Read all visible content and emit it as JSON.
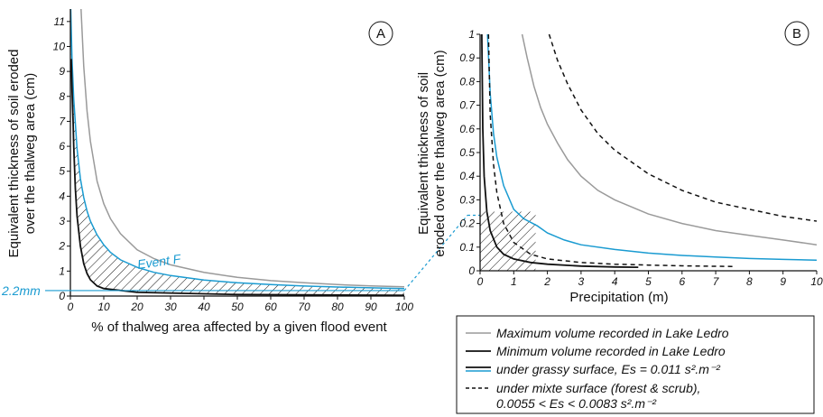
{
  "colors": {
    "gray": "#9a9a9a",
    "black": "#111111",
    "blue": "#1a9bd1"
  },
  "chart_data": [
    {
      "type": "line",
      "panel_label": "A",
      "xlabel": "% of thalweg area affected by a given flood event",
      "ylabel": [
        "Equivalent thickness of soil eroded",
        "over the thalweg area (cm)"
      ],
      "xlim": [
        0,
        100
      ],
      "ylim": [
        0,
        11.5
      ],
      "xticks": [
        "0",
        "10",
        "20",
        "30",
        "40",
        "50",
        "60",
        "70",
        "80",
        "90",
        "100"
      ],
      "yticks": [
        "0",
        "1",
        "2",
        "3",
        "4",
        "5",
        "6",
        "7",
        "8",
        "9",
        "10",
        "11"
      ],
      "series": [
        {
          "key": "max",
          "x": [
            3.2,
            4,
            5,
            6,
            7,
            8,
            10,
            12,
            15,
            20,
            25,
            30,
            40,
            50,
            60,
            70,
            80,
            90,
            100
          ],
          "y": [
            11.5,
            9.2,
            7.4,
            6.2,
            5.4,
            4.6,
            3.7,
            3.1,
            2.5,
            1.85,
            1.5,
            1.25,
            0.95,
            0.75,
            0.62,
            0.53,
            0.46,
            0.41,
            0.37
          ]
        },
        {
          "key": "min",
          "x": [
            0.25,
            0.5,
            0.8,
            1,
            1.5,
            2,
            3,
            4,
            5,
            6,
            8,
            10,
            20,
            50,
            100
          ],
          "y": [
            9.5,
            8.3,
            7,
            6,
            4.3,
            3.2,
            2,
            1.3,
            0.9,
            0.65,
            0.4,
            0.3,
            0.15,
            0.06,
            0.03
          ]
        },
        {
          "key": "event",
          "x": [
            0.1,
            0.5,
            1,
            2,
            3,
            4,
            5,
            6,
            8,
            10,
            12,
            15,
            20,
            25,
            30,
            40,
            50,
            60,
            70,
            80,
            90,
            100
          ],
          "y": [
            11.5,
            9.5,
            7.9,
            5.9,
            4.7,
            3.95,
            3.4,
            3.0,
            2.45,
            2.05,
            1.75,
            1.45,
            1.15,
            0.95,
            0.82,
            0.64,
            0.53,
            0.46,
            0.4,
            0.36,
            0.33,
            0.3
          ]
        }
      ],
      "annotations": {
        "event_label": "Event F",
        "threshold_label": "2.2mm",
        "threshold_value": 0.22
      }
    },
    {
      "type": "line",
      "panel_label": "B",
      "xlabel": "Precipitation (m)",
      "ylabel": [
        "Equivalent thickness of soil",
        "eroded over the thalweg area (cm)"
      ],
      "xlim": [
        0,
        10
      ],
      "ylim": [
        0,
        1
      ],
      "xticks": [
        "0",
        "1",
        "2",
        "3",
        "4",
        "5",
        "6",
        "7",
        "8",
        "9",
        "10"
      ],
      "yticks": [
        "0",
        "0.1",
        "0.2",
        "0.3",
        "0.4",
        "0.5",
        "0.6",
        "0.7",
        "0.8",
        "0.9",
        "1"
      ],
      "series": [
        {
          "key": "gray_upper",
          "x": [
            1.25,
            1.4,
            1.6,
            1.8,
            2,
            2.3,
            2.6,
            3,
            3.5,
            4,
            5,
            6,
            7,
            8,
            9,
            10
          ],
          "y": [
            1.0,
            0.9,
            0.78,
            0.69,
            0.62,
            0.54,
            0.47,
            0.4,
            0.34,
            0.3,
            0.24,
            0.2,
            0.17,
            0.15,
            0.13,
            0.11
          ]
        },
        {
          "key": "dashed_upper",
          "x": [
            2.05,
            2.3,
            2.6,
            3,
            3.5,
            4,
            5,
            6,
            7,
            8,
            9,
            10
          ],
          "y": [
            1.0,
            0.89,
            0.79,
            0.68,
            0.58,
            0.51,
            0.41,
            0.34,
            0.29,
            0.26,
            0.23,
            0.21
          ]
        },
        {
          "key": "blue",
          "x": [
            0.22,
            0.3,
            0.4,
            0.5,
            0.7,
            1,
            1.3,
            1.7,
            2,
            2.5,
            3,
            4,
            5,
            6,
            7,
            8,
            9,
            10
          ],
          "y": [
            1.0,
            0.75,
            0.58,
            0.48,
            0.36,
            0.26,
            0.22,
            0.19,
            0.16,
            0.13,
            0.11,
            0.09,
            0.075,
            0.065,
            0.058,
            0.052,
            0.048,
            0.045
          ]
        },
        {
          "key": "dashed_lower",
          "x": [
            0.25,
            0.3,
            0.4,
            0.5,
            0.7,
            1,
            1.5,
            2,
            3,
            4,
            5,
            6,
            7,
            7.6
          ],
          "y": [
            1.0,
            0.66,
            0.45,
            0.33,
            0.2,
            0.12,
            0.07,
            0.05,
            0.035,
            0.028,
            0.024,
            0.021,
            0.019,
            0.018
          ]
        },
        {
          "key": "black",
          "x": [
            0.05,
            0.08,
            0.12,
            0.2,
            0.3,
            0.5,
            0.7,
            1,
            1.5,
            2,
            3,
            4,
            4.7
          ],
          "y": [
            1.0,
            0.6,
            0.4,
            0.25,
            0.17,
            0.1,
            0.07,
            0.05,
            0.035,
            0.028,
            0.02,
            0.016,
            0.015
          ]
        }
      ],
      "hatch_rect": {
        "x": [
          0,
          1.65
        ],
        "y": [
          0,
          0.25
        ]
      }
    }
  ],
  "legend": [
    {
      "key": "gray",
      "text": "Maximum volume recorded in Lake Ledro"
    },
    {
      "key": "black",
      "text": "Minimum volume recorded in Lake Ledro"
    },
    {
      "key": "black_blue",
      "text": "under grassy surface, Es = 0.011 s².m⁻²"
    },
    {
      "key": "dashed",
      "text": "under mixte surface (forest & scrub),"
    },
    {
      "key": "none",
      "text": "0.0055 < Es < 0.0083 s².m⁻²"
    }
  ]
}
